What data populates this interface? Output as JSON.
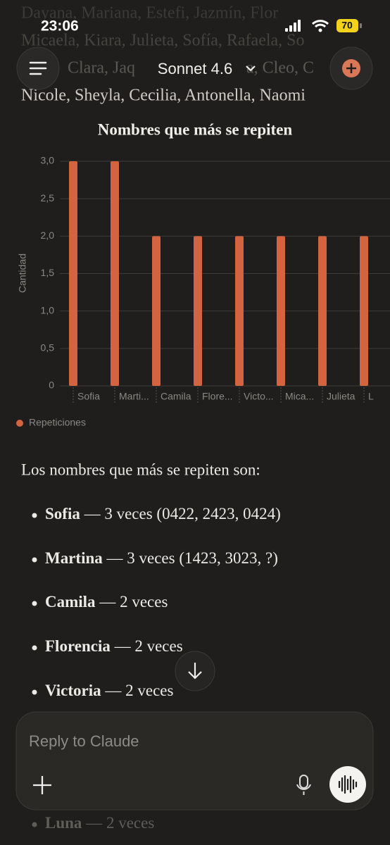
{
  "status_bar": {
    "time": "23:06",
    "battery": 70
  },
  "header": {
    "model": "Sonnet 4.6"
  },
  "background_text": [
    "Dayana, Mariana, Estefi, Jazmín, Flor",
    "Micaela, Kiara, Julieta, Sofía, Rafaela, So",
    "Clara, Jaq",
    "a, Cleo, C",
    "Nicole, Sheyla, Cecilia, Antonella, Naomi"
  ],
  "chart_data": {
    "type": "bar",
    "title": "Nombres que más se repiten",
    "y_label": "Cantidad",
    "categories": [
      "Sofia",
      "Marti...",
      "Camila",
      "Flore...",
      "Victo...",
      "Mica...",
      "Julieta",
      "L"
    ],
    "series": [
      {
        "name": "Repeticiones",
        "color": "#d4633f",
        "values": [
          3,
          3,
          2,
          2,
          2,
          2,
          2,
          2
        ]
      }
    ],
    "ylim": [
      0,
      3
    ],
    "yticks": [
      0,
      {
        "value": 0.5,
        "label": "0,5"
      },
      {
        "value": 1,
        "label": "1,0"
      },
      {
        "value": 1.5,
        "label": "1,5"
      },
      {
        "value": 2,
        "label": "2,0"
      },
      {
        "value": 2.5,
        "label": "2,5"
      },
      {
        "value": 3,
        "label": "3,0"
      }
    ],
    "grid": true,
    "legend": "bottom-left"
  },
  "message": {
    "intro": "Los nombres que más se repiten son:",
    "items": [
      {
        "name": "Sofia",
        "detail": " — 3 veces (0422, 2423, 0424)"
      },
      {
        "name": "Martina",
        "detail": " — 3 veces (1423, 3023, ?)"
      },
      {
        "name": "Camila",
        "detail": " — 2 veces"
      },
      {
        "name": "Florencia",
        "detail": " — 2 veces"
      },
      {
        "name": "Victoria",
        "detail": " — 2 veces"
      },
      {
        "name": "Luna",
        "detail": " — 2 veces"
      }
    ]
  },
  "composer": {
    "placeholder": "Reply to Claude"
  }
}
